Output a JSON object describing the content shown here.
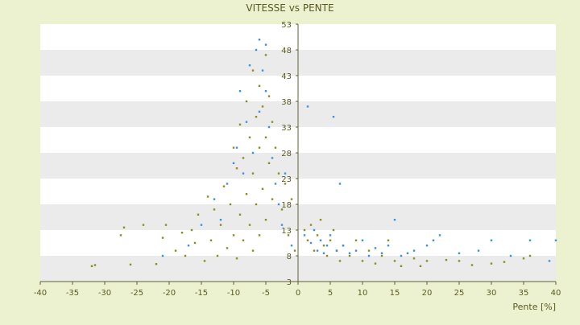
{
  "chart_data": {
    "type": "scatter",
    "title": "VITESSE vs PENTE",
    "xlabel": "Pente [%]",
    "ylabel": "",
    "xlim": [
      -40,
      40
    ],
    "ylim": [
      3,
      53
    ],
    "x_ticks": [
      -40,
      -35,
      -30,
      -25,
      -20,
      -15,
      -10,
      -5,
      0,
      5,
      10,
      15,
      20,
      25,
      30,
      35,
      40
    ],
    "y_ticks": [
      3,
      8,
      13,
      18,
      23,
      28,
      33,
      38,
      43,
      48,
      53
    ],
    "grid": true,
    "legend": "none",
    "colors": {
      "background": "#ecf2cf",
      "band_light": "#ffffff",
      "band_dark": "#ebebeb",
      "axis": "#606030",
      "text": "#5a5a20",
      "series_olive": "#8c8c1c",
      "series_blue": "#3d8fe0"
    },
    "series": [
      {
        "color": "#8c8c1c",
        "points": [
          [
            -32,
            6
          ],
          [
            -31.5,
            6.2
          ],
          [
            -27.5,
            12
          ],
          [
            -27,
            13.5
          ],
          [
            -26,
            6.3
          ],
          [
            -24,
            14
          ],
          [
            -22,
            6.4
          ],
          [
            -21,
            11.5
          ],
          [
            -20.5,
            14
          ],
          [
            -19,
            9
          ],
          [
            -18,
            12.5
          ],
          [
            -17.5,
            8
          ],
          [
            -16.5,
            13
          ],
          [
            -16,
            10.5
          ],
          [
            -15.5,
            16
          ],
          [
            -14.5,
            7
          ],
          [
            -14,
            19.5
          ],
          [
            -13.5,
            11
          ],
          [
            -13,
            17
          ],
          [
            -12.5,
            8
          ],
          [
            -12,
            14
          ],
          [
            -11.5,
            21.5
          ],
          [
            -11,
            9.5
          ],
          [
            -10.5,
            18
          ],
          [
            -10,
            12
          ],
          [
            -10,
            29
          ],
          [
            -9.5,
            25
          ],
          [
            -9.5,
            7.5
          ],
          [
            -9,
            33.5
          ],
          [
            -9,
            16
          ],
          [
            -8.5,
            11
          ],
          [
            -8.5,
            27
          ],
          [
            -8,
            38
          ],
          [
            -8,
            20
          ],
          [
            -7.5,
            31
          ],
          [
            -7.5,
            14
          ],
          [
            -7,
            44
          ],
          [
            -7,
            24
          ],
          [
            -7,
            9
          ],
          [
            -6.5,
            35
          ],
          [
            -6.5,
            18
          ],
          [
            -6,
            41
          ],
          [
            -6,
            29
          ],
          [
            -6,
            12
          ],
          [
            -5.5,
            37
          ],
          [
            -5.5,
            21
          ],
          [
            -5,
            47
          ],
          [
            -5,
            31
          ],
          [
            -5,
            15
          ],
          [
            -4.5,
            39
          ],
          [
            -4.5,
            26
          ],
          [
            -4,
            34
          ],
          [
            -4,
            19
          ],
          [
            -3.5,
            29
          ],
          [
            -3,
            24
          ],
          [
            -2.5,
            17
          ],
          [
            -2,
            22
          ],
          [
            -1.5,
            12
          ],
          [
            -1,
            19
          ],
          [
            -0.5,
            9
          ],
          [
            1,
            13
          ],
          [
            1.5,
            11
          ],
          [
            2,
            14
          ],
          [
            2.5,
            9
          ],
          [
            3,
            12
          ],
          [
            3.5,
            15
          ],
          [
            4,
            10
          ],
          [
            4.5,
            8
          ],
          [
            5,
            11
          ],
          [
            5.5,
            13
          ],
          [
            6,
            9
          ],
          [
            6.5,
            7
          ],
          [
            7,
            10
          ],
          [
            8,
            8
          ],
          [
            9,
            11
          ],
          [
            10,
            7
          ],
          [
            11,
            9
          ],
          [
            12,
            6.5
          ],
          [
            13,
            8
          ],
          [
            14,
            11
          ],
          [
            15,
            7
          ],
          [
            16,
            6
          ],
          [
            18,
            7.5
          ],
          [
            19,
            6
          ],
          [
            20,
            7
          ],
          [
            23,
            7.2
          ],
          [
            25,
            7
          ],
          [
            27,
            6.2
          ],
          [
            30,
            6.5
          ],
          [
            32,
            6.8
          ],
          [
            35,
            7.5
          ],
          [
            36,
            8
          ]
        ]
      },
      {
        "color": "#3d8fe0",
        "points": [
          [
            -21,
            8
          ],
          [
            -17,
            10
          ],
          [
            -15,
            14
          ],
          [
            -13,
            19
          ],
          [
            -12,
            15
          ],
          [
            -11,
            22
          ],
          [
            -10,
            26
          ],
          [
            -9.5,
            29
          ],
          [
            -9,
            40
          ],
          [
            -8.5,
            24
          ],
          [
            -8,
            34
          ],
          [
            -7.5,
            45
          ],
          [
            -7,
            28
          ],
          [
            -6.5,
            48
          ],
          [
            -6,
            36
          ],
          [
            -6,
            50
          ],
          [
            -5.5,
            44
          ],
          [
            -5,
            49
          ],
          [
            -5,
            40
          ],
          [
            -4.5,
            33
          ],
          [
            -4,
            27
          ],
          [
            -3.5,
            22
          ],
          [
            -3,
            18
          ],
          [
            -2.5,
            14
          ],
          [
            -2,
            24
          ],
          [
            -1,
            10
          ],
          [
            1,
            12
          ],
          [
            1.5,
            37
          ],
          [
            2,
            10.5
          ],
          [
            2.5,
            13
          ],
          [
            3,
            9
          ],
          [
            3.5,
            11
          ],
          [
            4,
            8.5
          ],
          [
            4.5,
            10
          ],
          [
            5,
            12
          ],
          [
            5.5,
            35
          ],
          [
            6,
            9
          ],
          [
            6.5,
            22
          ],
          [
            7,
            10
          ],
          [
            8,
            8.5
          ],
          [
            9,
            9
          ],
          [
            10,
            11
          ],
          [
            11,
            8
          ],
          [
            12,
            9.5
          ],
          [
            13,
            8.5
          ],
          [
            14,
            10
          ],
          [
            15,
            15
          ],
          [
            16,
            8
          ],
          [
            17,
            8.5
          ],
          [
            18,
            9
          ],
          [
            20,
            10
          ],
          [
            21,
            11
          ],
          [
            22,
            12
          ],
          [
            25,
            8.5
          ],
          [
            28,
            9
          ],
          [
            30,
            11
          ],
          [
            33,
            8
          ],
          [
            36,
            11
          ],
          [
            39,
            7
          ],
          [
            40,
            11
          ]
        ]
      }
    ]
  }
}
